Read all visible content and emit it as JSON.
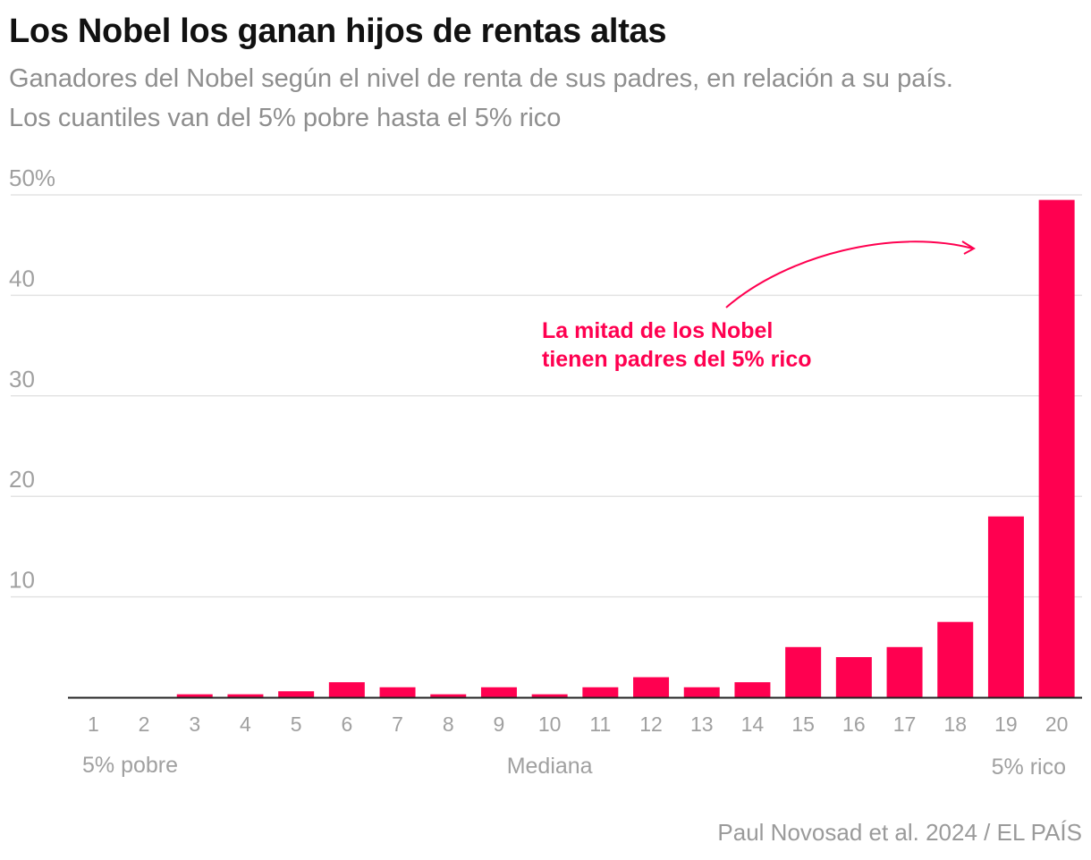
{
  "title": "Los Nobel los ganan hijos de rentas altas",
  "subtitle": [
    "Ganadores del Nobel según el nivel de renta de sus padres, en relación a su país.",
    "Los cuantiles van del 5% pobre hasta el 5% rico"
  ],
  "source": "Paul Novosad et al. 2024 / EL PAÍS",
  "colors": {
    "bar": "#ff0050",
    "annotation": "#ff0050",
    "grid": "#e3e3e3",
    "axis": "#222222",
    "tick_text": "#a0a0a0"
  },
  "chart_data": {
    "type": "bar",
    "categories": [
      "1",
      "2",
      "3",
      "4",
      "5",
      "6",
      "7",
      "8",
      "9",
      "10",
      "11",
      "12",
      "13",
      "14",
      "15",
      "16",
      "17",
      "18",
      "19",
      "20"
    ],
    "values": [
      0,
      0,
      0.3,
      0.3,
      0.6,
      1.5,
      1,
      0.3,
      1,
      0.3,
      1,
      2,
      1,
      1.5,
      5,
      4,
      5,
      7.5,
      18,
      49.5
    ],
    "ylim": [
      0,
      50
    ],
    "yticks": [
      10,
      20,
      30,
      40,
      50
    ],
    "ytick_labels": [
      "10",
      "20",
      "30",
      "40",
      "50%"
    ],
    "grid": true,
    "category_group_labels": [
      {
        "text": "5% pobre",
        "under": "1-3"
      },
      {
        "text": "Mediana",
        "under": "10"
      },
      {
        "text": "5% rico",
        "under": "20"
      }
    ],
    "annotation": {
      "lines": [
        "La mitad de los Nobel",
        "tienen padres del 5% rico"
      ],
      "points_to": "20"
    }
  }
}
